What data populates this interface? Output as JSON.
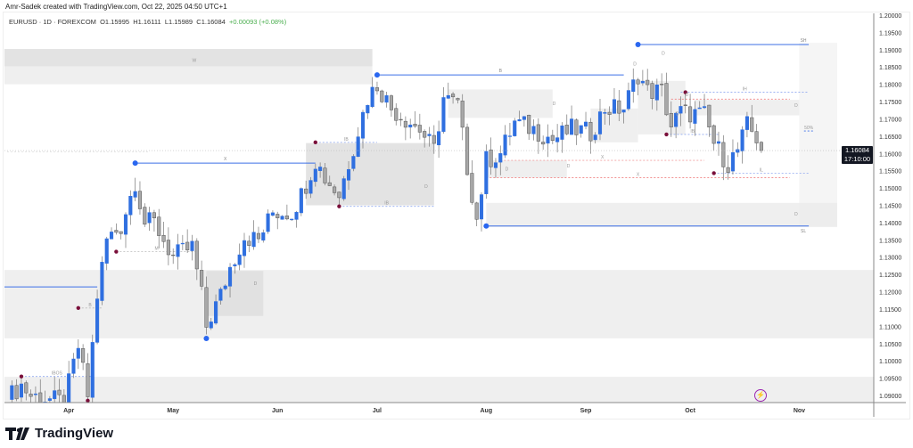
{
  "credit": "Amr-Sadek created with TradingView.com, Oct 22, 2025 04:50 UTC+1",
  "legend": {
    "symbol": "EURUSD · 1D · FOREXCOM",
    "open": "O1.15995",
    "high": "H1.16111",
    "low": "L1.15989",
    "close": "C1.16084",
    "change": "+0.00093 (+0.08%)"
  },
  "brand": "TradingView",
  "last_price": {
    "price": "1.16084",
    "countdown": "17:10:00"
  },
  "colors": {
    "up": "#2f6fe0",
    "down": "#a8a8a8",
    "zone": "#ececec",
    "zone_dark": "#dedede",
    "line": "#3c6fe6",
    "pivot": "#7a0f3a",
    "dot": "#2a67f0"
  },
  "icons": {
    "alert": "lightning-icon"
  },
  "chart_data": {
    "type": "candlestick",
    "symbol": "EURUSD",
    "timeframe": "1D",
    "ylim": [
      1.0875,
      1.2005
    ],
    "x_count": 170,
    "y_ticks": [
      "1.20000",
      "1.19500",
      "1.19000",
      "1.18500",
      "1.18000",
      "1.17500",
      "1.17000",
      "1.16500",
      "1.16000",
      "1.15500",
      "1.15000",
      "1.14500",
      "1.14000",
      "1.13500",
      "1.13000",
      "1.12500",
      "1.12000",
      "1.11500",
      "1.11000",
      "1.10500",
      "1.10000",
      "1.09500",
      "1.09000"
    ],
    "x_ticks": [
      {
        "i": 13,
        "label": "Apr"
      },
      {
        "i": 35,
        "label": "May"
      },
      {
        "i": 57,
        "label": "Jun"
      },
      {
        "i": 78,
        "label": "Jul"
      },
      {
        "i": 101,
        "label": "Aug"
      },
      {
        "i": 122,
        "label": "Sep"
      },
      {
        "i": 144,
        "label": "Oct"
      },
      {
        "i": 167,
        "label": "Nov"
      }
    ],
    "close_waypoints": [
      [
        0,
        1.089
      ],
      [
        3,
        1.093
      ],
      [
        5,
        1.09
      ],
      [
        12,
        1.088
      ],
      [
        15,
        1.104
      ],
      [
        17,
        1.09
      ],
      [
        19,
        1.119
      ],
      [
        21,
        1.135
      ],
      [
        24,
        1.139
      ],
      [
        27,
        1.152
      ],
      [
        29,
        1.14
      ],
      [
        31,
        1.14
      ],
      [
        35,
        1.13
      ],
      [
        39,
        1.133
      ],
      [
        41,
        1.119
      ],
      [
        42,
        1.11
      ],
      [
        45,
        1.119
      ],
      [
        47,
        1.127
      ],
      [
        50,
        1.136
      ],
      [
        53,
        1.135
      ],
      [
        56,
        1.143
      ],
      [
        60,
        1.143
      ],
      [
        62,
        1.148
      ],
      [
        65,
        1.158
      ],
      [
        67,
        1.153
      ],
      [
        70,
        1.148
      ],
      [
        73,
        1.162
      ],
      [
        76,
        1.176
      ],
      [
        78,
        1.18
      ],
      [
        81,
        1.173
      ],
      [
        84,
        1.17
      ],
      [
        87,
        1.167
      ],
      [
        90,
        1.161
      ],
      [
        92,
        1.176
      ],
      [
        95,
        1.174
      ],
      [
        97,
        1.156
      ],
      [
        99,
        1.141
      ],
      [
        101,
        1.158
      ],
      [
        104,
        1.16
      ],
      [
        107,
        1.169
      ],
      [
        111,
        1.167
      ],
      [
        115,
        1.164
      ],
      [
        119,
        1.167
      ],
      [
        123,
        1.166
      ],
      [
        126,
        1.173
      ],
      [
        130,
        1.173
      ],
      [
        133,
        1.183
      ],
      [
        135,
        1.178
      ],
      [
        138,
        1.178
      ],
      [
        140,
        1.168
      ],
      [
        142,
        1.172
      ],
      [
        147,
        1.171
      ],
      [
        149,
        1.163
      ],
      [
        152,
        1.157
      ],
      [
        154,
        1.161
      ],
      [
        156,
        1.168
      ],
      [
        158,
        1.1645
      ],
      [
        159,
        1.16084
      ]
    ],
    "last_close": 1.16084,
    "zones": [
      {
        "from": -1,
        "to": 77,
        "top": 1.1902,
        "bottom": 1.1852,
        "dark": true
      },
      {
        "from": -1,
        "to": 77,
        "top": 1.1852,
        "bottom": 1.18,
        "dark": false
      },
      {
        "from": -1,
        "to": 183,
        "top": 1.1263,
        "bottom": 1.1065,
        "dark": false
      },
      {
        "from": -1,
        "to": 183,
        "top": 1.0954,
        "bottom": 1.0875,
        "dark": false
      },
      {
        "from": 42,
        "to": 54,
        "top": 1.126,
        "bottom": 1.113,
        "dark": true
      },
      {
        "from": 63,
        "to": 90,
        "top": 1.163,
        "bottom": 1.145,
        "dark": true
      },
      {
        "from": 101,
        "to": 175,
        "top": 1.1457,
        "bottom": 1.1387,
        "dark": false
      },
      {
        "from": 93,
        "to": 115,
        "top": 1.1785,
        "bottom": 1.1703,
        "dark": false
      },
      {
        "from": 133,
        "to": 143,
        "top": 1.181,
        "bottom": 1.1655,
        "dark": false
      },
      {
        "from": 145,
        "to": 167,
        "top": 1.1755,
        "bottom": 1.171,
        "dark": false
      },
      {
        "from": 101,
        "to": 118,
        "top": 1.158,
        "bottom": 1.153,
        "dark": false
      },
      {
        "from": 123,
        "to": 133,
        "top": 1.173,
        "bottom": 1.1632,
        "dark": false
      },
      {
        "from": 167,
        "to": 175,
        "top": 1.192,
        "bottom": 1.139,
        "dark": false
      }
    ],
    "levels": [
      {
        "from": 27,
        "to": 65,
        "price": 1.1572,
        "dot": true,
        "label": "X"
      },
      {
        "from": 78,
        "to": 130,
        "price": 1.1827,
        "dot": true,
        "label": "B"
      },
      {
        "from": 133,
        "to": 169,
        "price": 1.1915,
        "dot": true,
        "label": "SH"
      },
      {
        "from": 101,
        "to": 169,
        "price": 1.139,
        "dot": true,
        "label": "SL"
      },
      {
        "from": -1,
        "to": 19,
        "price": 1.1214,
        "dot": false,
        "label": ""
      }
    ],
    "dotted": [
      {
        "from": 142,
        "to": 169,
        "price": 1.1777,
        "color": "#8fa8f0",
        "label": "IH"
      },
      {
        "from": 149,
        "to": 169,
        "price": 1.1543,
        "color": "#8fa8f0",
        "label": "IL"
      },
      {
        "from": 140,
        "to": 165,
        "price": 1.1757,
        "color": "#f08080",
        "label": ""
      },
      {
        "from": 101,
        "to": 165,
        "price": 1.153,
        "color": "#f08080",
        "label": "X"
      },
      {
        "from": 104,
        "to": 147,
        "price": 1.158,
        "color": "#f0a0a0",
        "label": "X"
      },
      {
        "from": 3,
        "to": 18,
        "price": 1.0955,
        "color": "#8fa8f0",
        "label": "IBOS"
      },
      {
        "from": 23,
        "to": 40,
        "price": 1.1316,
        "color": "#bbbbbb",
        "label": "M"
      },
      {
        "from": 65,
        "to": 78,
        "price": 1.1632,
        "color": "#8fa8f0",
        "label": "IB"
      },
      {
        "from": 70,
        "to": 90,
        "price": 1.1447,
        "color": "#8fa8f0",
        "label": "IB"
      },
      {
        "from": 139,
        "to": 150,
        "price": 1.1655,
        "color": "#8fa8f0",
        "label": "IB"
      },
      {
        "from": 15,
        "to": 20,
        "price": 1.1153,
        "color": "#bbbbbb",
        "label": "B"
      },
      {
        "from": 168,
        "to": 170,
        "price": 1.1665,
        "color": "#3c6fe6",
        "label": "50%"
      },
      {
        "from": 0,
        "to": 30,
        "price": 1.1605,
        "color": "#dddddd",
        "label": ""
      }
    ],
    "pivots": [
      [
        23,
        1.1316
      ],
      [
        15,
        1.1153
      ],
      [
        3,
        1.0955
      ],
      [
        17,
        1.0885
      ],
      [
        65,
        1.1632
      ],
      [
        70,
        1.1447
      ],
      [
        139,
        1.1655
      ],
      [
        143,
        1.1777
      ],
      [
        149,
        1.1543
      ]
    ],
    "blue_dots": [
      [
        42,
        1.1065
      ]
    ],
    "tags": [
      {
        "i": 39,
        "price": 1.1865,
        "label": "W"
      },
      {
        "i": 52,
        "price": 1.122,
        "label": "D"
      },
      {
        "i": 88,
        "price": 1.15,
        "label": "D"
      },
      {
        "i": 115,
        "price": 1.174,
        "label": "D"
      },
      {
        "i": 118,
        "price": 1.156,
        "label": "D"
      },
      {
        "i": 132,
        "price": 1.1855,
        "label": "D"
      },
      {
        "i": 143,
        "price": 1.1765,
        "label": "D"
      },
      {
        "i": 141,
        "price": 1.171,
        "label": "D"
      },
      {
        "i": 166,
        "price": 1.1735,
        "label": "D"
      },
      {
        "i": 166,
        "price": 1.142,
        "label": "D"
      },
      {
        "i": 138,
        "price": 1.1885,
        "label": "D"
      },
      {
        "i": 105,
        "price": 1.155,
        "label": "D"
      }
    ]
  }
}
